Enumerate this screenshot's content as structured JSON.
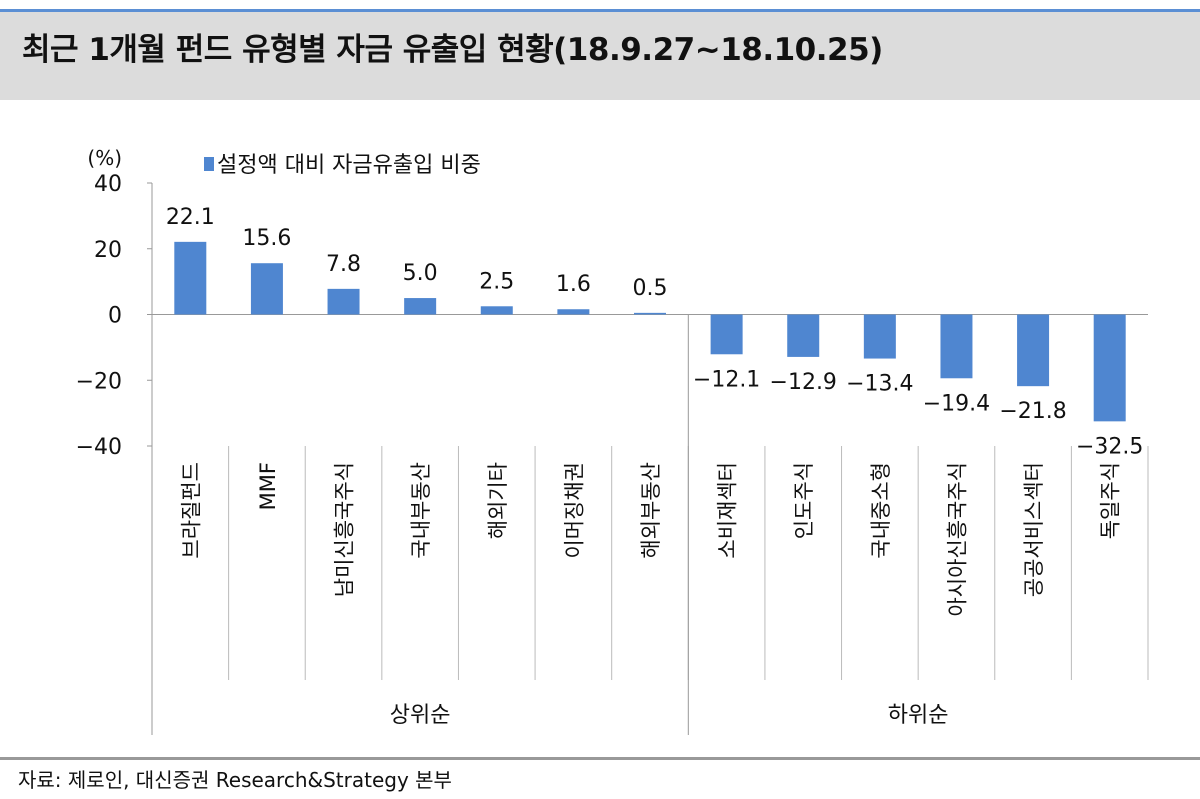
{
  "header": {
    "title": "최근 1개월 펀드 유형별 자금 유출입 현황(18.9.27~18.10.25)"
  },
  "footer": {
    "source": "자료: 제로인, 대신증권 Research&Strategy 본부"
  },
  "chart_data": {
    "type": "bar",
    "title": "",
    "ylabel": "(%)",
    "ylim": [
      -40,
      40
    ],
    "yticks": [
      40,
      20,
      0,
      -20,
      -40
    ],
    "grid": false,
    "legend_position": "top-left",
    "bar_color": "#4f86d0",
    "categories": [
      "브라질펀드",
      "MMF",
      "남미신흥국주식",
      "국내부동산",
      "해외기타",
      "이머징채권",
      "해외부동산",
      "소비재섹터",
      "인도주식",
      "국내중소형",
      "아시아신흥국주식",
      "공공서비스섹터",
      "독일주식"
    ],
    "groups": [
      {
        "label": "상위순",
        "count": 7
      },
      {
        "label": "하위순",
        "count": 6
      }
    ],
    "series": [
      {
        "name": "설정액 대비 자금유출입 비중",
        "values": [
          22.1,
          15.6,
          7.8,
          5.0,
          2.5,
          1.6,
          0.5,
          -12.1,
          -12.9,
          -13.4,
          -19.4,
          -21.8,
          -32.5
        ]
      }
    ]
  }
}
